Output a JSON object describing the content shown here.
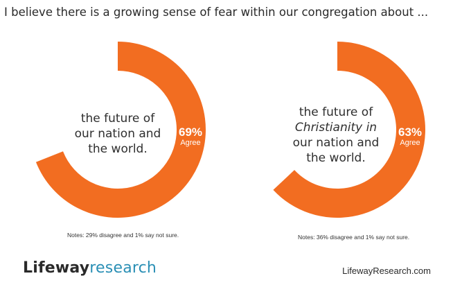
{
  "title": "I believe there is a growing sense of fear within our congregation about ...",
  "colors": {
    "accent": "#f26d21",
    "text": "#2a2a2a",
    "brand_blue": "#2a8fb5"
  },
  "chart_data": [
    {
      "type": "pie",
      "variant": "donut",
      "center_lines": [
        "the future of",
        "our nation and",
        "the world."
      ],
      "series": [
        {
          "values": [
            69
          ]
        }
      ],
      "value_label": "69%",
      "value_caption": "Agree",
      "note": "Notes: 29% disagree and 1% say not sure."
    },
    {
      "type": "pie",
      "variant": "donut",
      "center_lines": [
        "the future of",
        "Christianity in",
        "our nation and",
        "the world."
      ],
      "series": [
        {
          "values": [
            63
          ]
        }
      ],
      "value_label": "63%",
      "value_caption": "Agree",
      "note": "Notes: 36% disagree and 1% say not sure."
    }
  ],
  "footer": {
    "brand_part1": "Lifeway",
    "brand_part2": "research",
    "site": "LifewayResearch.com"
  }
}
